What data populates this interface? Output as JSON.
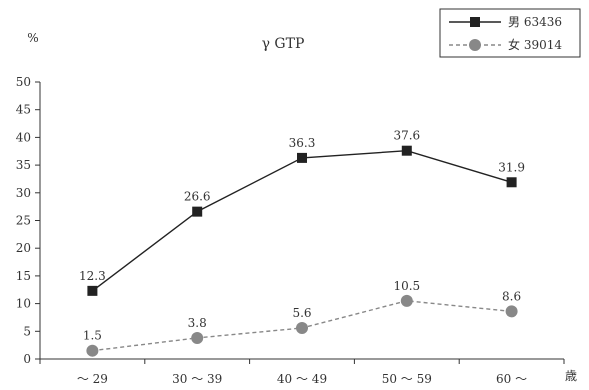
{
  "chart_data": {
    "type": "line",
    "title": "γ GTP",
    "ylabel": "%",
    "xlabel": "歳",
    "categories": [
      "～ 29",
      "30 ～ 39",
      "40 ～ 49",
      "50 ～ 59",
      "60 ～"
    ],
    "ylim": [
      0,
      50
    ],
    "yticks": [
      0,
      5,
      10,
      15,
      20,
      25,
      30,
      35,
      40,
      45,
      50
    ],
    "grid": false,
    "legend_position": "top-right",
    "series": [
      {
        "name": "男 63436",
        "values": [
          12.3,
          26.6,
          36.3,
          37.6,
          31.9
        ],
        "labels": [
          "12.3",
          "26.6",
          "36.3",
          "37.6",
          "31.9"
        ],
        "color": "#222222",
        "marker": "square",
        "line": "solid"
      },
      {
        "name": "女 39014",
        "values": [
          1.5,
          3.8,
          5.6,
          10.5,
          8.6
        ],
        "labels": [
          "1.5",
          "3.8",
          "5.6",
          "10.5",
          "8.6"
        ],
        "color": "#888888",
        "marker": "circle",
        "line": "dashed"
      }
    ]
  }
}
